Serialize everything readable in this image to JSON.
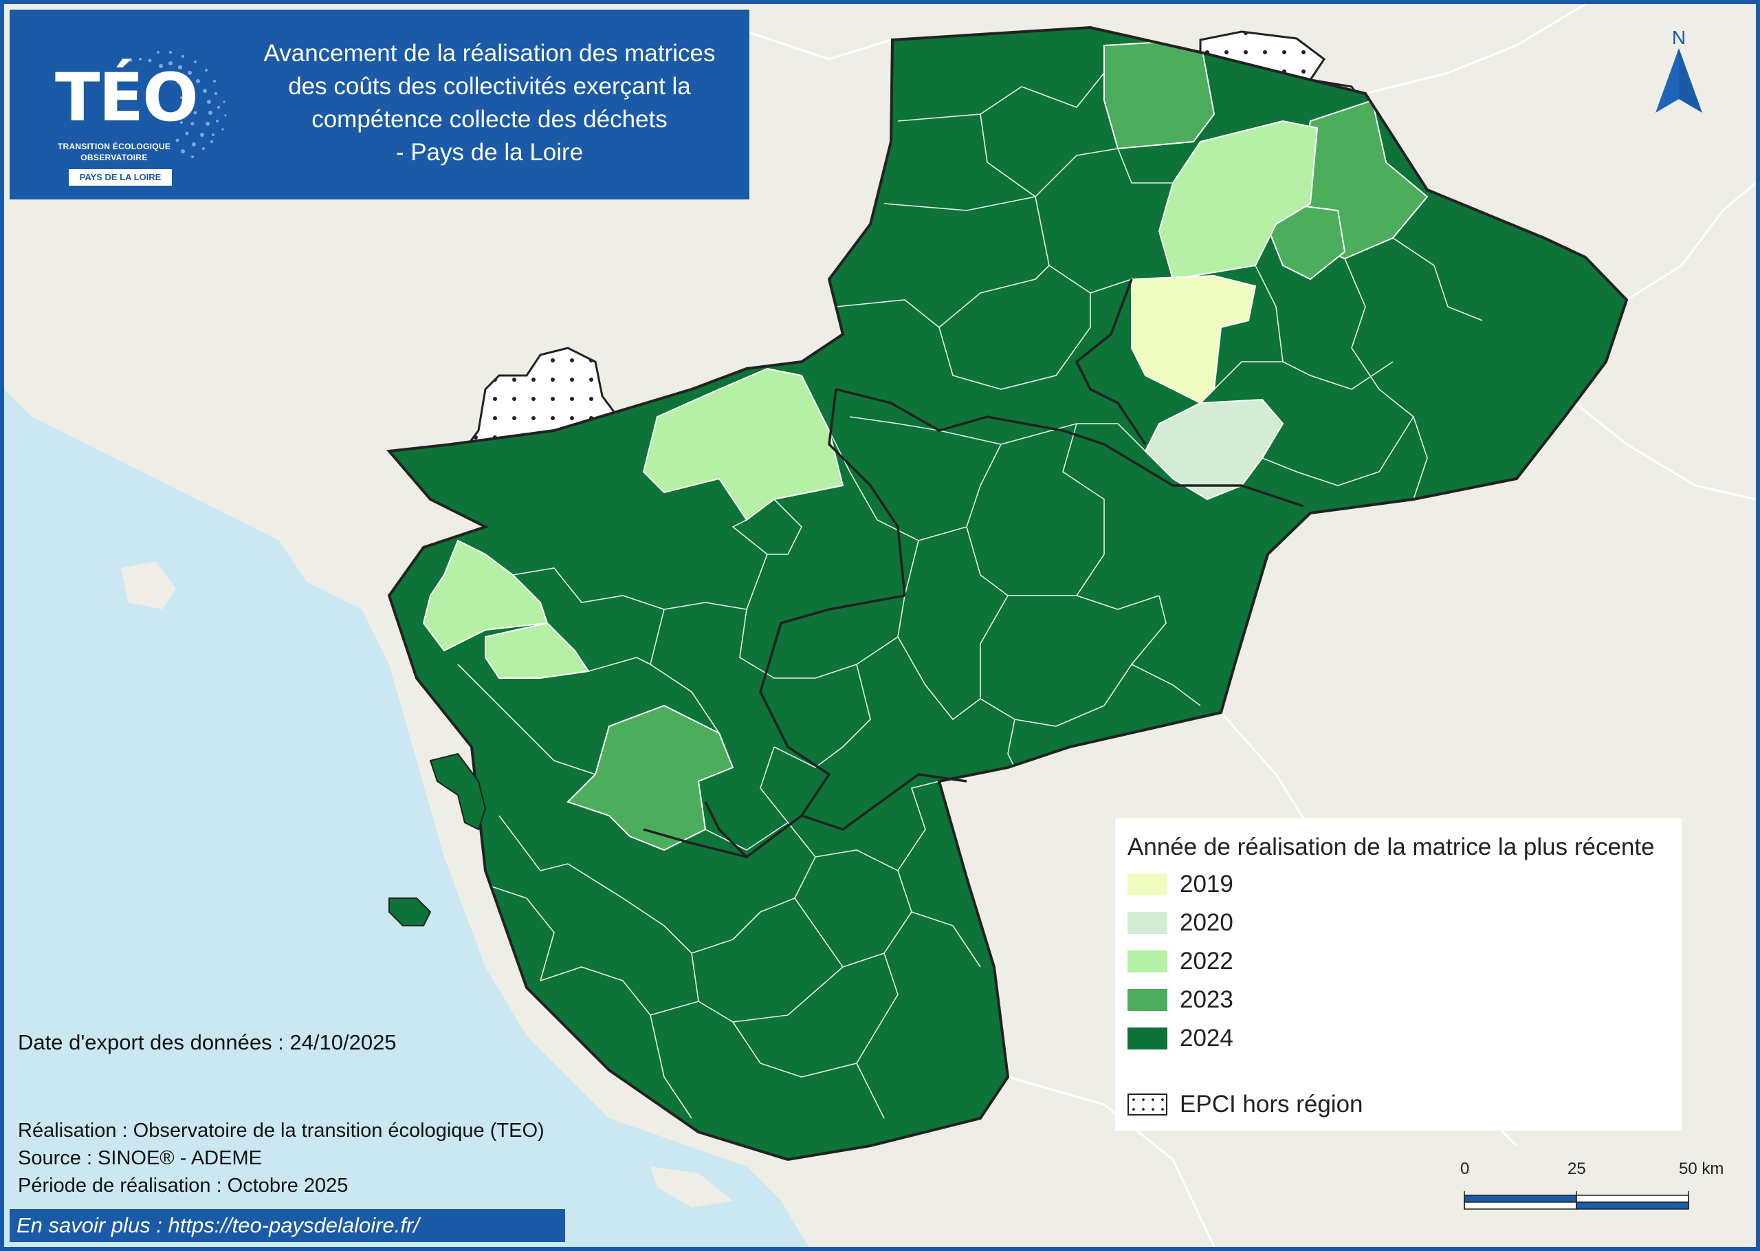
{
  "title_box": {
    "logo_text": "TÉO",
    "logo_sub_1": "TRANSITION ÉCOLOGIQUE",
    "logo_sub_2": "OBSERVATOIRE",
    "logo_badge": "PAYS DE LA LOIRE",
    "title_lines": [
      "Avancement de la réalisation des matrices",
      "des coûts des collectivités exerçant la",
      "compétence collecte des déchets",
      "- Pays de la Loire"
    ]
  },
  "north_label": "N",
  "legend": {
    "title": "Année de réalisation de la matrice la plus récente",
    "items": [
      {
        "label": "2019",
        "color": "#f0fcc0"
      },
      {
        "label": "2020",
        "color": "#d3ecd3"
      },
      {
        "label": "2022",
        "color": "#b5f0a6"
      },
      {
        "label": "2023",
        "color": "#4cae5c"
      },
      {
        "label": "2024",
        "color": "#0d7338"
      }
    ],
    "outside_label": "EPCI hors région"
  },
  "scale": {
    "labels": [
      "0",
      "25",
      "50 km"
    ]
  },
  "export_date": "Date d'export des données : 24/10/2025",
  "credits": [
    "Réalisation : Observatoire de la transition écologique (TEO)",
    "Source : SINOE® - ADEME",
    "Période de réalisation : Octobre 2025"
  ],
  "more_info": "En savoir plus : https://teo-paysdelaloire.fr/",
  "colors": {
    "sea": "#cbe8f2",
    "land": "#eeede6",
    "frame": "#1a5aa6"
  }
}
